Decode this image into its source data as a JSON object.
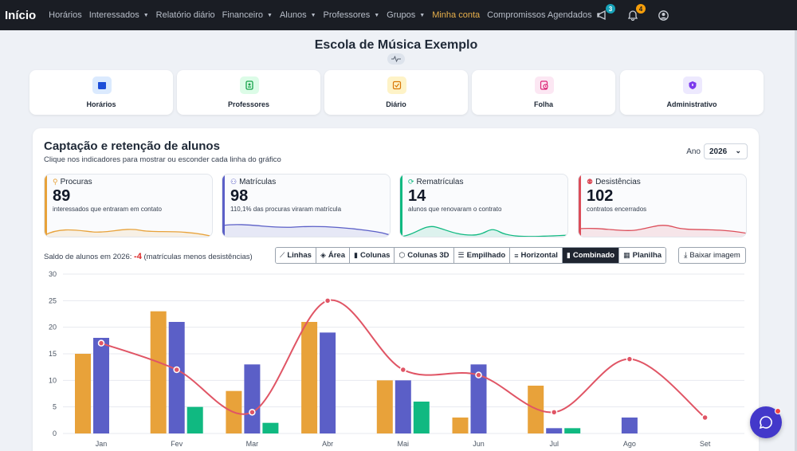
{
  "nav": {
    "brand": "Início",
    "items": [
      {
        "label": "Horários",
        "dropdown": false,
        "active": false
      },
      {
        "label": "Interessados",
        "dropdown": true,
        "active": false
      },
      {
        "label": "Relatório diário",
        "dropdown": false,
        "active": false
      },
      {
        "label": "Financeiro",
        "dropdown": true,
        "active": false
      },
      {
        "label": "Alunos",
        "dropdown": true,
        "active": false
      },
      {
        "label": "Professores",
        "dropdown": true,
        "active": false
      },
      {
        "label": "Grupos",
        "dropdown": true,
        "active": false
      },
      {
        "label": "Minha conta",
        "dropdown": false,
        "active": true
      },
      {
        "label": "Compromissos Agendados",
        "dropdown": true,
        "active": false
      }
    ],
    "icons": {
      "megaphone_badge": "3",
      "bell_badge": "4"
    }
  },
  "header": {
    "school_name": "Escola de Música Exemplo"
  },
  "quick_cards": [
    {
      "label": "Horários",
      "icon": "calendar-icon",
      "bg": "#dbeafe",
      "color": "#1d4ed8"
    },
    {
      "label": "Professores",
      "icon": "id-badge-icon",
      "bg": "#dcfce7",
      "color": "#16a34a"
    },
    {
      "label": "Diário",
      "icon": "checklist-icon",
      "bg": "#fef3c7",
      "color": "#d97706"
    },
    {
      "label": "Folha",
      "icon": "payroll-icon",
      "bg": "#fce7f3",
      "color": "#db2777"
    },
    {
      "label": "Administrativo",
      "icon": "shield-icon",
      "bg": "#ede9fe",
      "color": "#7c3aed"
    }
  ],
  "main": {
    "title": "Captação e retenção de alunos",
    "subtitle": "Clique nos indicadores para mostrar ou esconder cada linha do gráfico",
    "year_label": "Ano",
    "year_value": "2026"
  },
  "kpis": [
    {
      "label": "Procuras",
      "value": "89",
      "desc": "interessados que entraram em contato",
      "color": "#e8a23a",
      "icon": "search-icon"
    },
    {
      "label": "Matrículas",
      "value": "98",
      "desc": "110,1% das procuras viraram matrícula",
      "color": "#5b5fc7",
      "icon": "user-plus-icon"
    },
    {
      "label": "Rematrículas",
      "value": "14",
      "desc": "alunos que renovaram o contrato",
      "color": "#10b981",
      "icon": "refresh-icon"
    },
    {
      "label": "Desistências",
      "value": "102",
      "desc": "contratos encerrados",
      "color": "#dc4e5a",
      "icon": "user-x-icon"
    }
  ],
  "saldo": {
    "prefix": "Saldo de alunos em 2026:",
    "value": "-4",
    "suffix": "(matrículas menos desistências)"
  },
  "view_buttons": [
    {
      "label": "Linhas",
      "glyph": "⟋",
      "active": false
    },
    {
      "label": "Área",
      "glyph": "◈",
      "active": false
    },
    {
      "label": "Colunas",
      "glyph": "▮",
      "active": false
    },
    {
      "label": "Colunas 3D",
      "glyph": "⬡",
      "active": false
    },
    {
      "label": "Empilhado",
      "glyph": "☰",
      "active": false
    },
    {
      "label": "Horizontal",
      "glyph": "≡",
      "active": false
    },
    {
      "label": "Combinado",
      "glyph": "▮",
      "active": true
    },
    {
      "label": "Planilha",
      "glyph": "▦",
      "active": false
    }
  ],
  "download_label": "Baixar imagem",
  "chart_data": {
    "type": "bar",
    "categories": [
      "Jan",
      "Fev",
      "Mar",
      "Abr",
      "Mai",
      "Jun",
      "Jul",
      "Ago",
      "Set"
    ],
    "ylim": [
      0,
      30
    ],
    "yticks": [
      0,
      5,
      10,
      15,
      20,
      25,
      30
    ],
    "series": [
      {
        "name": "Procuras",
        "type": "bar",
        "color": "#e8a23a",
        "values": [
          15,
          23,
          8,
          21,
          10,
          3,
          9,
          0,
          0
        ]
      },
      {
        "name": "Matrículas",
        "type": "bar",
        "color": "#5b5fc7",
        "values": [
          18,
          21,
          13,
          19,
          10,
          13,
          1,
          3,
          0
        ]
      },
      {
        "name": "Rematrículas",
        "type": "bar",
        "color": "#10b981",
        "values": [
          0,
          5,
          2,
          0,
          6,
          0,
          1,
          0,
          0
        ]
      },
      {
        "name": "Desistências",
        "type": "line",
        "color": "#e05565",
        "values": [
          17,
          12,
          4,
          25,
          12,
          11,
          4,
          14,
          3
        ]
      }
    ],
    "grid": true
  }
}
